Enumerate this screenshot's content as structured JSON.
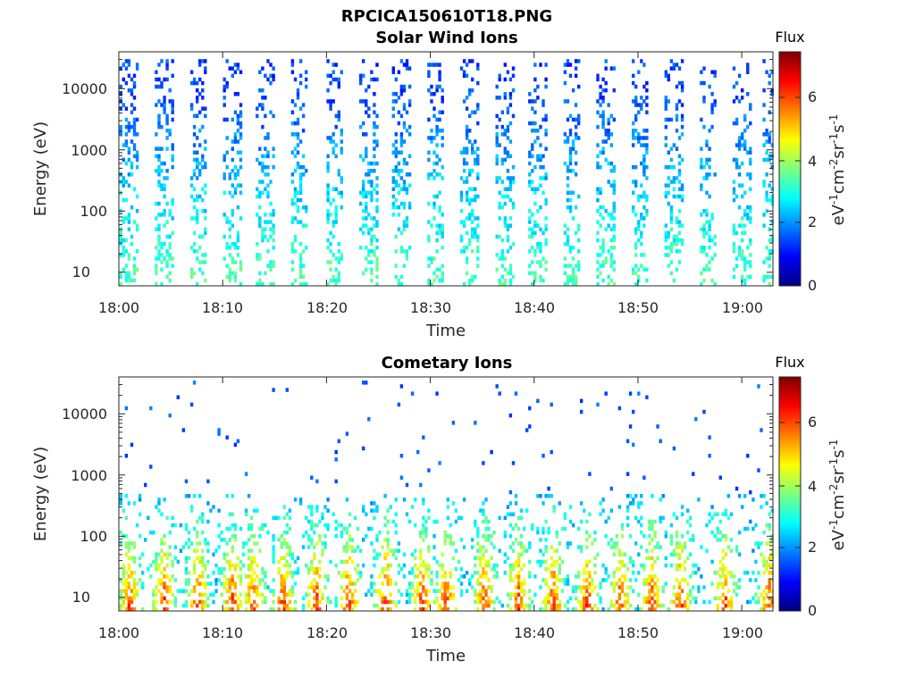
{
  "figure": {
    "title": "RPCICA150610T18.PNG"
  },
  "colormap": [
    "#00007f",
    "#0000ff",
    "#007fff",
    "#00ffff",
    "#7fff7f",
    "#ffff00",
    "#ff7f00",
    "#ff0000",
    "#7f0000"
  ],
  "chart_data": [
    {
      "type": "heatmap",
      "title": "Solar Wind Ions",
      "xlabel": "Time",
      "ylabel": "Energy (eV)",
      "x_ticks": [
        "18:00",
        "18:10",
        "18:20",
        "18:30",
        "18:40",
        "18:50",
        "19:00"
      ],
      "xlim": [
        "18:00",
        "19:03"
      ],
      "y_scale": "log",
      "y_ticks": [
        "10",
        "100",
        "1000",
        "10000"
      ],
      "ylim": [
        6,
        40000
      ],
      "colorbar": {
        "label": "Flux",
        "unit": "eV-1cm-2sr-1s-1",
        "range": [
          0,
          7.3
        ],
        "ticks": [
          "0",
          "2",
          "4",
          "6"
        ]
      },
      "pattern": {
        "sweep_times_min": [
          0.9,
          4.2,
          7.5,
          10.8,
          14.0,
          17.3,
          20.6,
          23.9,
          27.1,
          30.4,
          33.7,
          37.0,
          40.2,
          43.5,
          46.8,
          50.1,
          53.3,
          56.6,
          59.9,
          62.6
        ],
        "energy_range_eV": [
          6,
          30000
        ],
        "flux_at_10eV": 3.2,
        "flux_at_10keV": 1.4
      }
    },
    {
      "type": "heatmap",
      "title": "Cometary Ions",
      "xlabel": "Time",
      "ylabel": "Energy (eV)",
      "x_ticks": [
        "18:00",
        "18:10",
        "18:20",
        "18:30",
        "18:40",
        "18:50",
        "19:00"
      ],
      "xlim": [
        "18:00",
        "19:03"
      ],
      "y_scale": "log",
      "y_ticks": [
        "10",
        "100",
        "1000",
        "10000"
      ],
      "ylim": [
        6,
        40000
      ],
      "colorbar": {
        "label": "Flux",
        "unit": "eV-1cm-2sr-1s-1",
        "range": [
          0,
          7.3
        ],
        "ticks": [
          "0",
          "2",
          "4",
          "6"
        ]
      },
      "pattern": {
        "sweep_times_min": [
          0.9,
          4.2,
          7.5,
          10.8,
          12.8,
          15.7,
          18.9,
          22.0,
          25.6,
          29.1,
          31.4,
          35.1,
          38.4,
          41.7,
          45.0,
          48.2,
          51.2,
          54.0,
          58.3,
          62.5
        ],
        "energy_range_eV": [
          6,
          1000
        ],
        "peak_flux": 7.0,
        "peak_energy_eV": 10
      }
    }
  ]
}
